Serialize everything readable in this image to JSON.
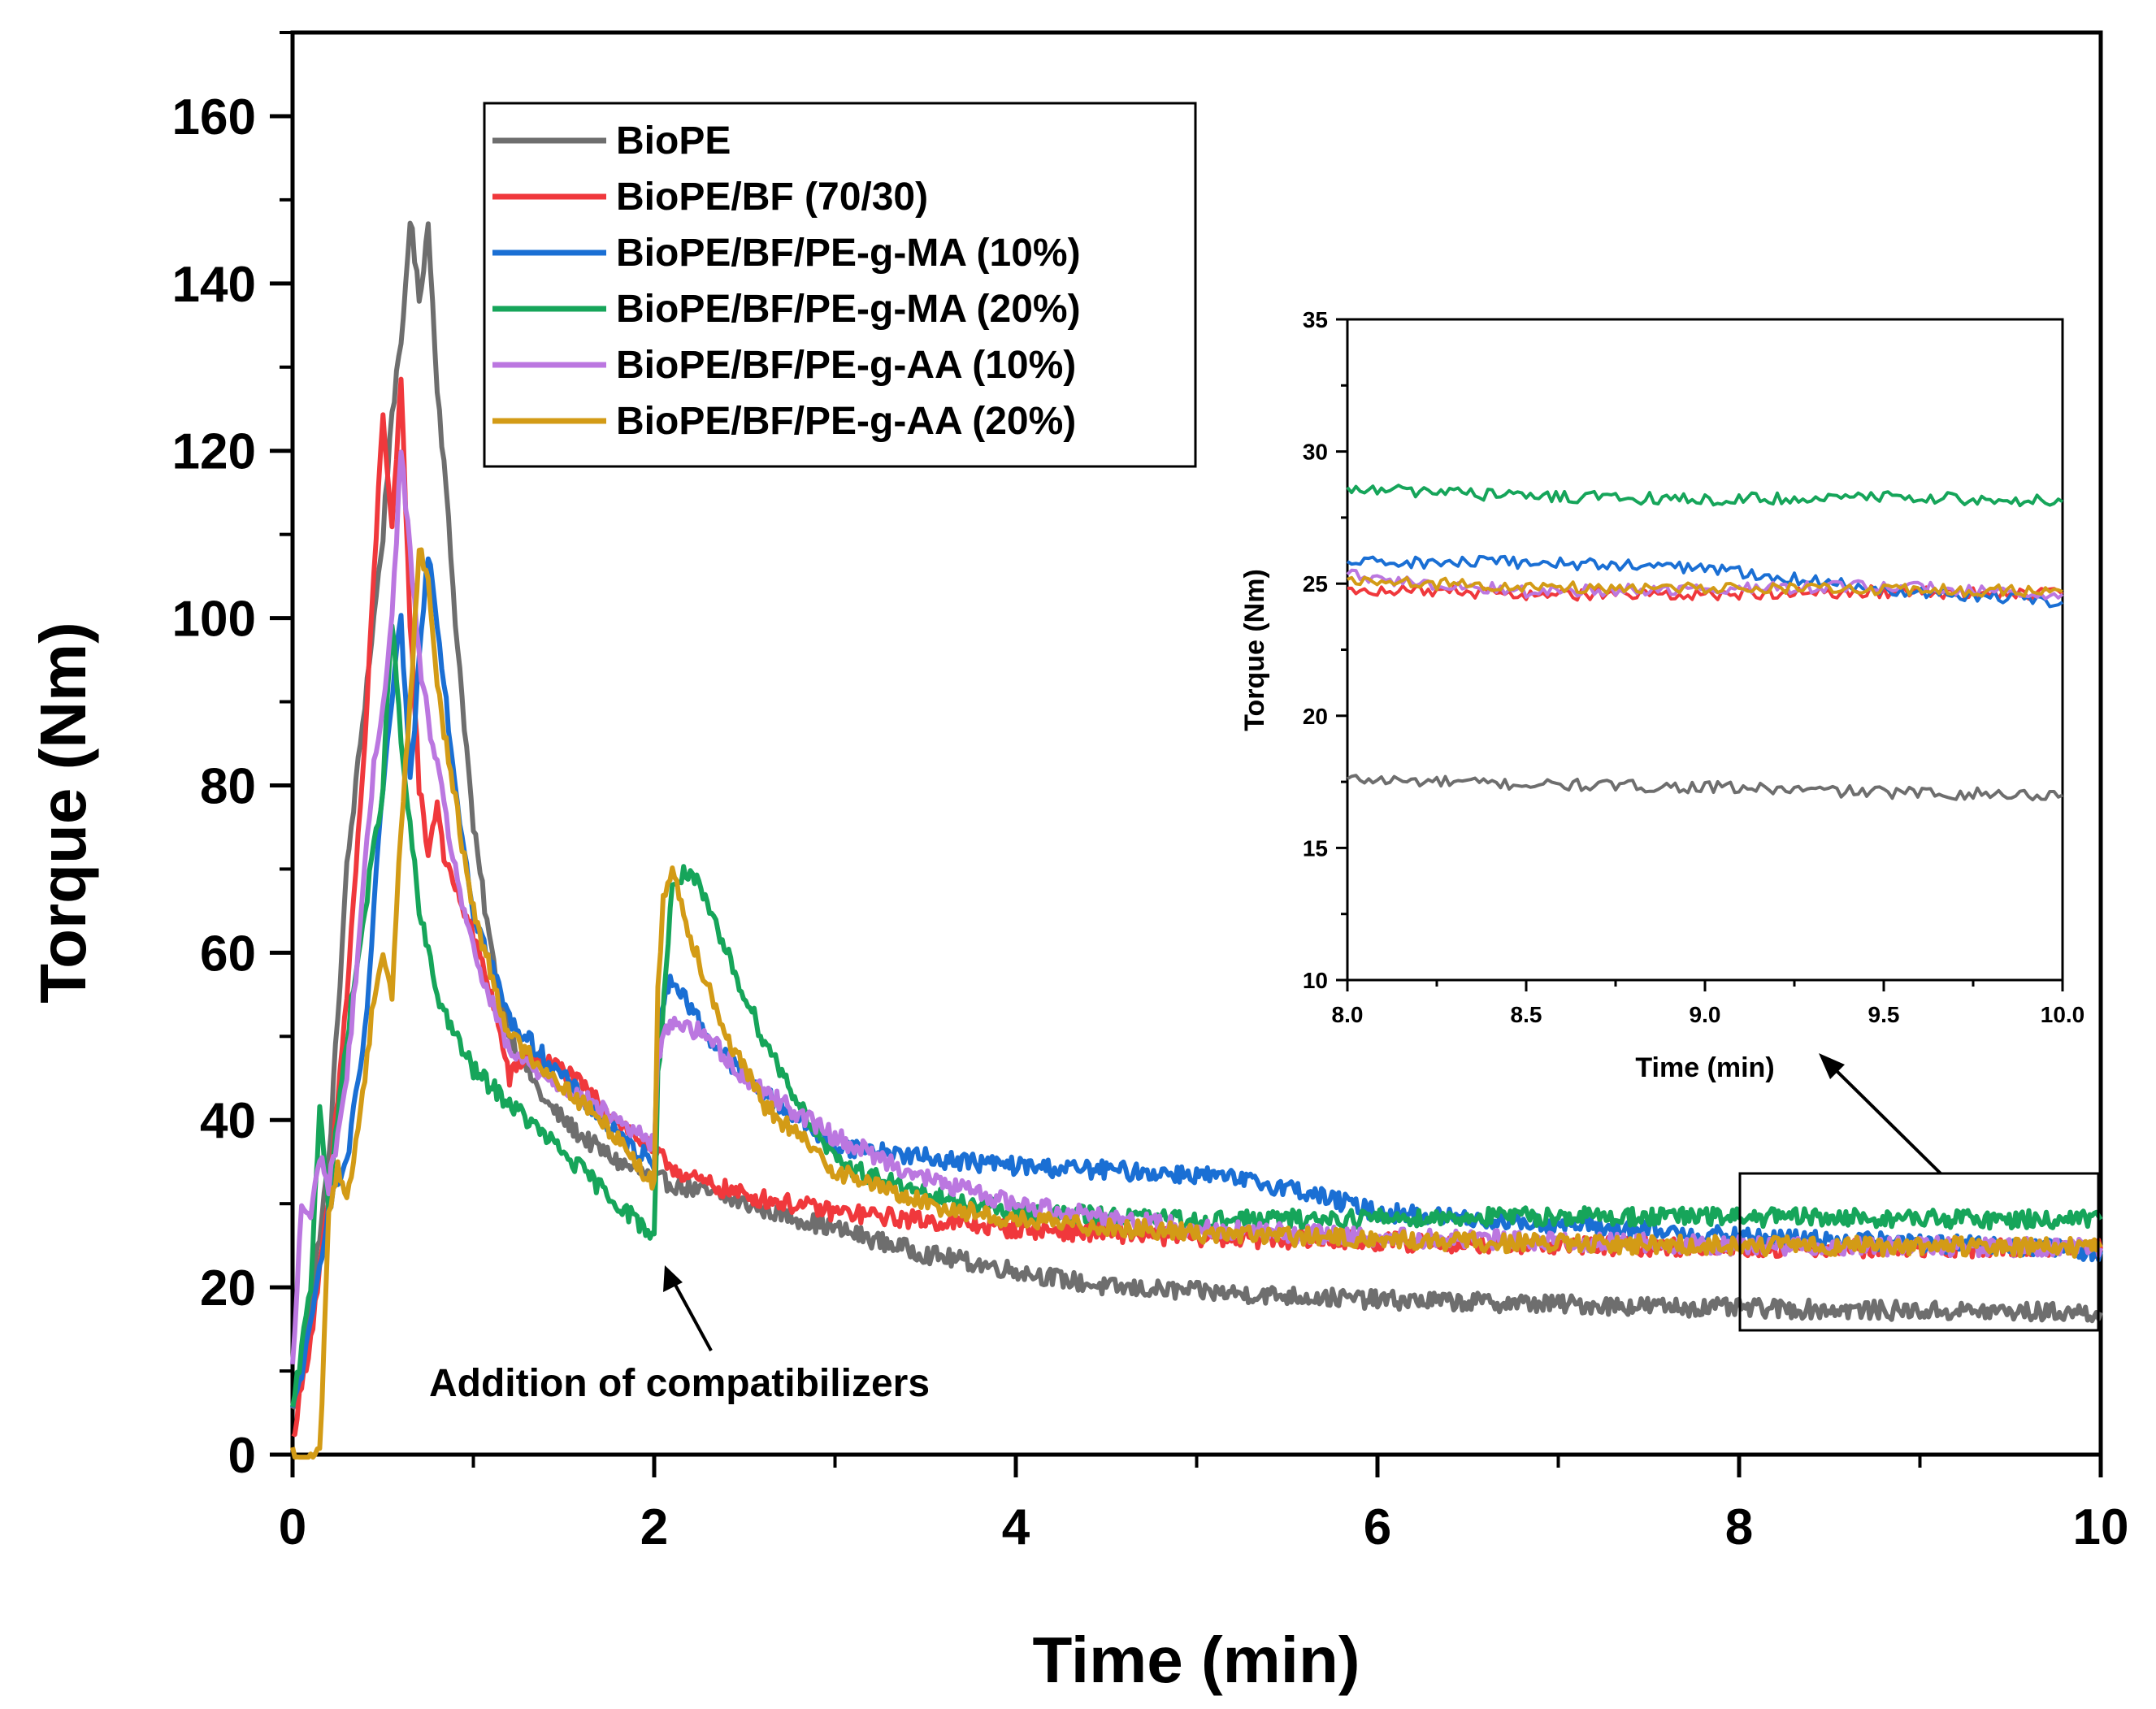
{
  "chart_data": [
    {
      "type": "line",
      "id": "main",
      "xlabel": "Time (min)",
      "ylabel": "Torque (Nm)",
      "xlim": [
        0,
        10
      ],
      "ylim": [
        0,
        170
      ],
      "xticks": [
        0,
        2,
        4,
        6,
        8,
        10
      ],
      "yticks": [
        0,
        20,
        40,
        60,
        80,
        100,
        120,
        140,
        160
      ],
      "annotation": "Addition of compatibilizers",
      "legend_position": "top-center",
      "series": [
        {
          "name": "BioPE",
          "color": "#6e6e6e",
          "x": [
            0,
            0.1,
            0.2,
            0.3,
            0.4,
            0.5,
            0.55,
            0.6,
            0.65,
            0.7,
            0.75,
            0.8,
            0.85,
            0.9,
            1.0,
            1.1,
            1.2,
            1.4,
            1.6,
            1.8,
            2.0,
            2.5,
            3.0,
            3.5,
            4.0,
            4.5,
            5.0,
            5.5,
            6.0,
            7.0,
            8.0,
            9.0,
            10.0
          ],
          "y": [
            5,
            18,
            35,
            70,
            90,
            110,
            125,
            132,
            148,
            138,
            147,
            128,
            115,
            100,
            75,
            60,
            50,
            42,
            38,
            35,
            33,
            30,
            27,
            24,
            22,
            20,
            19.5,
            19,
            18.5,
            18,
            17.5,
            17.2,
            17
          ]
        },
        {
          "name": "BioPE/BF (70/30)",
          "color": "#f0383c",
          "x": [
            0,
            0.1,
            0.2,
            0.3,
            0.4,
            0.45,
            0.5,
            0.55,
            0.6,
            0.65,
            0.7,
            0.75,
            0.8,
            0.85,
            0.9,
            1.0,
            1.1,
            1.2,
            1.3,
            1.5,
            1.7,
            1.9,
            2.0,
            2.2,
            2.5,
            3.0,
            3.5,
            4.0,
            5.0,
            6.0,
            7.0,
            8.0,
            9.0,
            10.0
          ],
          "y": [
            2,
            14,
            30,
            55,
            85,
            105,
            125,
            110,
            128,
            100,
            80,
            72,
            78,
            70,
            68,
            62,
            55,
            45,
            48,
            46,
            42,
            38,
            36,
            33,
            31,
            29,
            28,
            27,
            26,
            25.5,
            25,
            24.8,
            24.7,
            24.6
          ]
        },
        {
          "name": "BioPE/BF/PE-g-MA (10%)",
          "color": "#1a6fd4",
          "x": [
            0,
            0.1,
            0.2,
            0.3,
            0.4,
            0.5,
            0.6,
            0.65,
            0.7,
            0.75,
            0.8,
            0.9,
            1.0,
            1.2,
            1.5,
            1.8,
            2.0,
            2.02,
            2.1,
            2.3,
            2.5,
            2.8,
            3.0,
            3.5,
            4.0,
            4.5,
            5.0,
            5.5,
            6.0,
            7.0,
            8.0,
            9.0,
            10.0
          ],
          "y": [
            5,
            15,
            30,
            35,
            50,
            80,
            100,
            80,
            95,
            108,
            100,
            80,
            65,
            52,
            45,
            38,
            35,
            52,
            57,
            50,
            45,
            40,
            37,
            35.5,
            34.5,
            34,
            33.5,
            32,
            29,
            27.5,
            26,
            25.3,
            24.3
          ]
        },
        {
          "name": "BioPE/BF/PE-g-MA (20%)",
          "color": "#16a55a",
          "x": [
            0,
            0.1,
            0.15,
            0.2,
            0.3,
            0.4,
            0.5,
            0.55,
            0.6,
            0.65,
            0.7,
            0.75,
            0.8,
            0.9,
            1.0,
            1.2,
            1.5,
            1.8,
            2.0,
            2.02,
            2.1,
            2.2,
            2.4,
            2.6,
            2.8,
            3.0,
            3.5,
            4.0,
            5.0,
            6.0,
            7.0,
            8.0,
            9.0,
            10.0
          ],
          "y": [
            5,
            20,
            42,
            30,
            50,
            65,
            80,
            100,
            85,
            75,
            65,
            60,
            55,
            50,
            46,
            42,
            36,
            30,
            26,
            45,
            68,
            70,
            60,
            50,
            42,
            35,
            31,
            29,
            28,
            28.3,
            28.5,
            28.4,
            28.2,
            28.1
          ]
        },
        {
          "name": "BioPE/BF/PE-g-AA (10%)",
          "color": "#bb77e0",
          "x": [
            0,
            0.05,
            0.1,
            0.15,
            0.2,
            0.3,
            0.4,
            0.45,
            0.5,
            0.55,
            0.6,
            0.65,
            0.7,
            0.75,
            0.8,
            0.9,
            1.0,
            1.2,
            1.5,
            1.8,
            2.0,
            2.02,
            2.1,
            2.3,
            2.5,
            3.0,
            3.5,
            4.0,
            5.0,
            6.0,
            7.0,
            8.0,
            9.0,
            10.0
          ],
          "y": [
            10,
            30,
            28,
            36,
            32,
            45,
            70,
            82,
            90,
            100,
            120,
            108,
            95,
            88,
            82,
            70,
            60,
            48,
            44,
            40,
            37,
            48,
            52,
            50,
            45,
            38,
            33,
            30,
            27,
            26,
            25.5,
            25,
            24.9,
            24.7
          ]
        },
        {
          "name": "BioPE/BF/PE-g-AA (20%)",
          "color": "#d39b16",
          "x": [
            0,
            0.05,
            0.1,
            0.15,
            0.2,
            0.25,
            0.3,
            0.4,
            0.45,
            0.5,
            0.55,
            0.6,
            0.65,
            0.7,
            0.75,
            0.8,
            0.9,
            1.0,
            1.2,
            1.5,
            1.8,
            2.0,
            2.02,
            2.05,
            2.1,
            2.2,
            2.4,
            2.6,
            3.0,
            3.5,
            4.0,
            5.0,
            6.0,
            7.0,
            8.0,
            9.0,
            10.0
          ],
          "y": [
            0,
            -2,
            -1,
            0,
            28,
            35,
            30,
            45,
            55,
            60,
            55,
            75,
            90,
            108,
            105,
            92,
            78,
            65,
            50,
            44,
            38,
            32,
            55,
            67,
            70,
            62,
            50,
            42,
            34,
            30,
            28,
            26.5,
            25.7,
            25.2,
            25,
            24.9,
            24.8
          ]
        }
      ]
    },
    {
      "type": "line",
      "id": "inset",
      "xlabel": "Time (min)",
      "ylabel": "Torque (Nm)",
      "xlim": [
        8.0,
        10.0
      ],
      "ylim": [
        10,
        35
      ],
      "xtick_labels": [
        "8.0",
        "8.5",
        "9.0",
        "9.5",
        "10.0"
      ],
      "ytick_labels": [
        "10",
        "15",
        "20",
        "25",
        "30",
        "35"
      ],
      "series": [
        {
          "name": "BioPE",
          "color": "#6e6e6e",
          "x": [
            8.0,
            8.5,
            9.0,
            9.5,
            10.0
          ],
          "y": [
            17.6,
            17.4,
            17.3,
            17.1,
            17.0
          ]
        },
        {
          "name": "BioPE/BF (70/30)",
          "color": "#f0383c",
          "x": [
            8.0,
            8.5,
            9.0,
            9.5,
            10.0
          ],
          "y": [
            24.8,
            24.6,
            24.6,
            24.7,
            24.6
          ]
        },
        {
          "name": "BioPE/BF/PE-g-MA (10%)",
          "color": "#1a6fd4",
          "x": [
            8.0,
            8.5,
            9.0,
            9.5,
            10.0
          ],
          "y": [
            25.8,
            25.8,
            25.6,
            24.8,
            24.3
          ]
        },
        {
          "name": "BioPE/BF/PE-g-MA (20%)",
          "color": "#16a55a",
          "x": [
            8.0,
            8.5,
            9.0,
            9.5,
            10.0
          ],
          "y": [
            28.6,
            28.3,
            28.2,
            28.3,
            28.1
          ]
        },
        {
          "name": "BioPE/BF/PE-g-AA (10%)",
          "color": "#bb77e0",
          "x": [
            8.0,
            8.5,
            9.0,
            9.5,
            10.0
          ],
          "y": [
            25.3,
            24.7,
            24.8,
            24.9,
            24.6
          ]
        },
        {
          "name": "BioPE/BF/PE-g-AA (20%)",
          "color": "#d39b16",
          "x": [
            8.0,
            8.5,
            9.0,
            9.5,
            10.0
          ],
          "y": [
            25.1,
            24.9,
            24.8,
            24.8,
            24.7
          ]
        }
      ]
    }
  ]
}
